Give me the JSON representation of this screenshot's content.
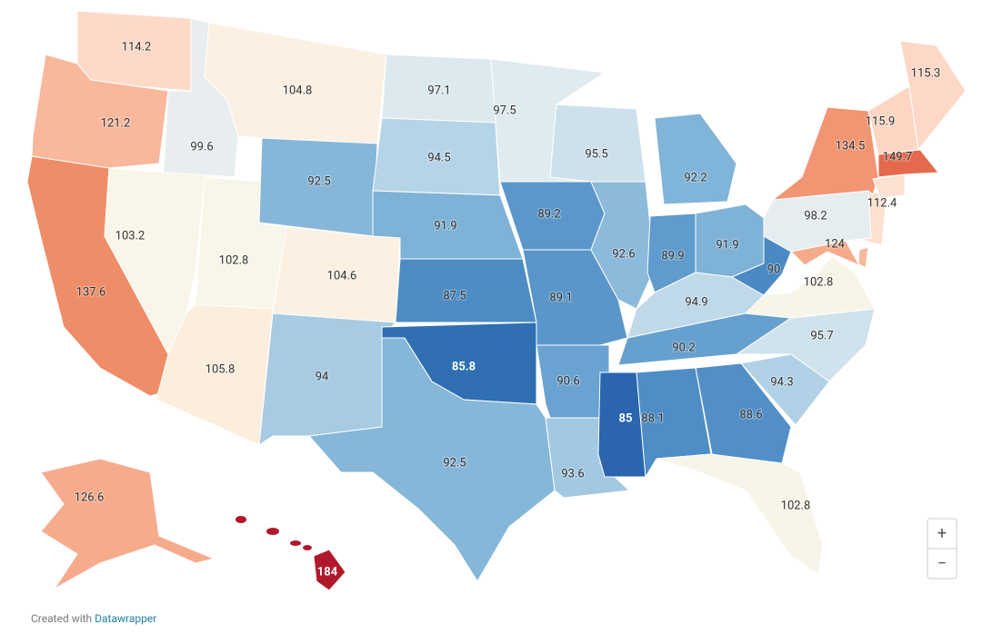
{
  "map": {
    "regions": [
      {
        "value": 114.2,
        "color": "#fddac8"
      },
      {
        "value": 121.2,
        "color": "#f9b79b"
      },
      {
        "value": 137.6,
        "color": "#ef8d68"
      },
      {
        "value": 99.6,
        "color": "#e8eef0"
      },
      {
        "value": 103.2,
        "color": "#f9f5e8"
      },
      {
        "value": 104.8,
        "color": "#fbf0e2"
      },
      {
        "value": 102.8,
        "color": "#f8f6e8"
      },
      {
        "value": 105.8,
        "color": "#fbeedd"
      },
      {
        "value": 92.5,
        "color": "#86b7d9"
      },
      {
        "value": 104.6,
        "color": "#fbf0e2"
      },
      {
        "value": 94.0,
        "color": "#a7cbe2"
      },
      {
        "value": 97.1,
        "color": "#dce9ef"
      },
      {
        "value": 94.5,
        "color": "#b6d4e7"
      },
      {
        "value": 91.9,
        "color": "#7fb2d7"
      },
      {
        "value": 87.5,
        "color": "#4d8cc4"
      },
      {
        "value": 85.8,
        "color": "#2f6fb2"
      },
      {
        "value": 92.5,
        "color": "#86b7d9"
      },
      {
        "value": 97.5,
        "color": "#e0ebf0"
      },
      {
        "value": 89.2,
        "color": "#5b97cb"
      },
      {
        "value": 89.1,
        "color": "#5a96ca"
      },
      {
        "value": 90.6,
        "color": "#6aa3d1"
      },
      {
        "value": 93.6,
        "color": "#a2c8e2"
      },
      {
        "value": 95.5,
        "color": "#cde1ec"
      },
      {
        "value": 92.6,
        "color": "#8bbadb"
      },
      {
        "value": 92.2,
        "color": "#80b4d8"
      },
      {
        "value": 89.9,
        "color": "#5f9bcd"
      },
      {
        "value": 91.9,
        "color": "#7fb2d7"
      },
      {
        "value": 94.9,
        "color": "#c0d9e9"
      },
      {
        "value": 90.2,
        "color": "#66a0cf"
      },
      {
        "value": 85.0,
        "color": "#2a65ad"
      },
      {
        "value": 88.1,
        "color": "#4e8dc5"
      },
      {
        "value": 88.6,
        "color": "#528fc7"
      },
      {
        "value": 102.8,
        "color": "#f7f5e8"
      },
      {
        "value": 94.3,
        "color": "#b1d1e6"
      },
      {
        "value": 95.7,
        "color": "#d0e3ed"
      },
      {
        "value": 102.8,
        "color": "#f7f5e8"
      },
      {
        "value": 90.0,
        "color": "#4a89c3"
      },
      {
        "value": 124.0,
        "color": "#f6aa8c"
      },
      {
        "value": 98.2,
        "color": "#e6edf0"
      },
      {
        "value": 134.5,
        "color": "#f29573"
      },
      {
        "value": 112.4,
        "color": "#fde2d3"
      },
      {
        "value": 115.9,
        "color": "#fdd6c4"
      },
      {
        "value": 115.3,
        "color": "#fdd8c6"
      },
      {
        "value": 149.7,
        "color": "#e5694d"
      },
      {
        "value": 126.6,
        "color": "#f7ab8d"
      },
      {
        "value": 184.0,
        "color": "#b2182b"
      }
    ]
  },
  "footer": {
    "prefix": "Created with",
    "link": "Datawrapper"
  },
  "zoom": {
    "in": "+",
    "out": "−"
  }
}
